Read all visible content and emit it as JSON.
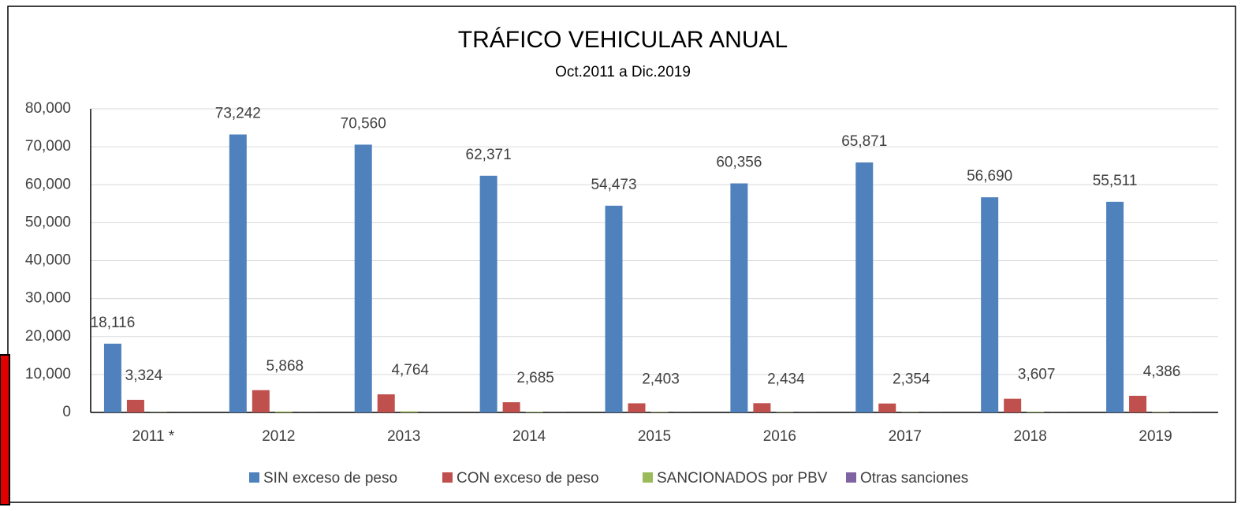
{
  "chart_data": {
    "type": "bar",
    "title": "TRÁFICO VEHICULAR ANUAL",
    "subtitle": "Oct.2011 a Dic.2019",
    "categories": [
      "2011 *",
      "2012",
      "2013",
      "2014",
      "2015",
      "2016",
      "2017",
      "2018",
      "2019"
    ],
    "series": [
      {
        "name": "SIN exceso de peso",
        "color": "#4f81bd",
        "values": [
          18116,
          73242,
          70560,
          62371,
          54473,
          60356,
          65871,
          56690,
          55511
        ],
        "value_labels": [
          "18,116",
          "73,242",
          "70,560",
          "62,371",
          "54,473",
          "60,356",
          "65,871",
          "56,690",
          "55,511"
        ]
      },
      {
        "name": "CON exceso de peso",
        "color": "#c0504d",
        "values": [
          3324,
          5868,
          4764,
          2685,
          2403,
          2434,
          2354,
          3607,
          4386
        ],
        "value_labels": [
          "3,324",
          "5,868",
          "4,764",
          "2,685",
          "2,403",
          "2,434",
          "2,354",
          "3,607",
          "4,386"
        ]
      },
      {
        "name": "SANCIONADOS por PBV",
        "color": "#9bbb59",
        "values": [
          50,
          250,
          300,
          150,
          100,
          80,
          60,
          150,
          100
        ]
      },
      {
        "name": "Otras sanciones",
        "color": "#8064a2",
        "values": [
          10,
          20,
          20,
          20,
          20,
          20,
          20,
          20,
          20
        ]
      }
    ],
    "ylim": [
      0,
      80000
    ],
    "yticks": [
      0,
      {
        "value": 10000,
        "label": "10,000"
      },
      {
        "value": 20000,
        "label": "20,000"
      },
      {
        "value": 30000,
        "label": "30,000"
      },
      {
        "value": 40000,
        "label": "40,000"
      },
      {
        "value": 50000,
        "label": "50,000"
      },
      {
        "value": 60000,
        "label": "60,000"
      },
      {
        "value": 70000,
        "label": "70,000"
      },
      {
        "value": 80000,
        "label": "80,000"
      }
    ],
    "grid": true,
    "legend": "bottom"
  }
}
